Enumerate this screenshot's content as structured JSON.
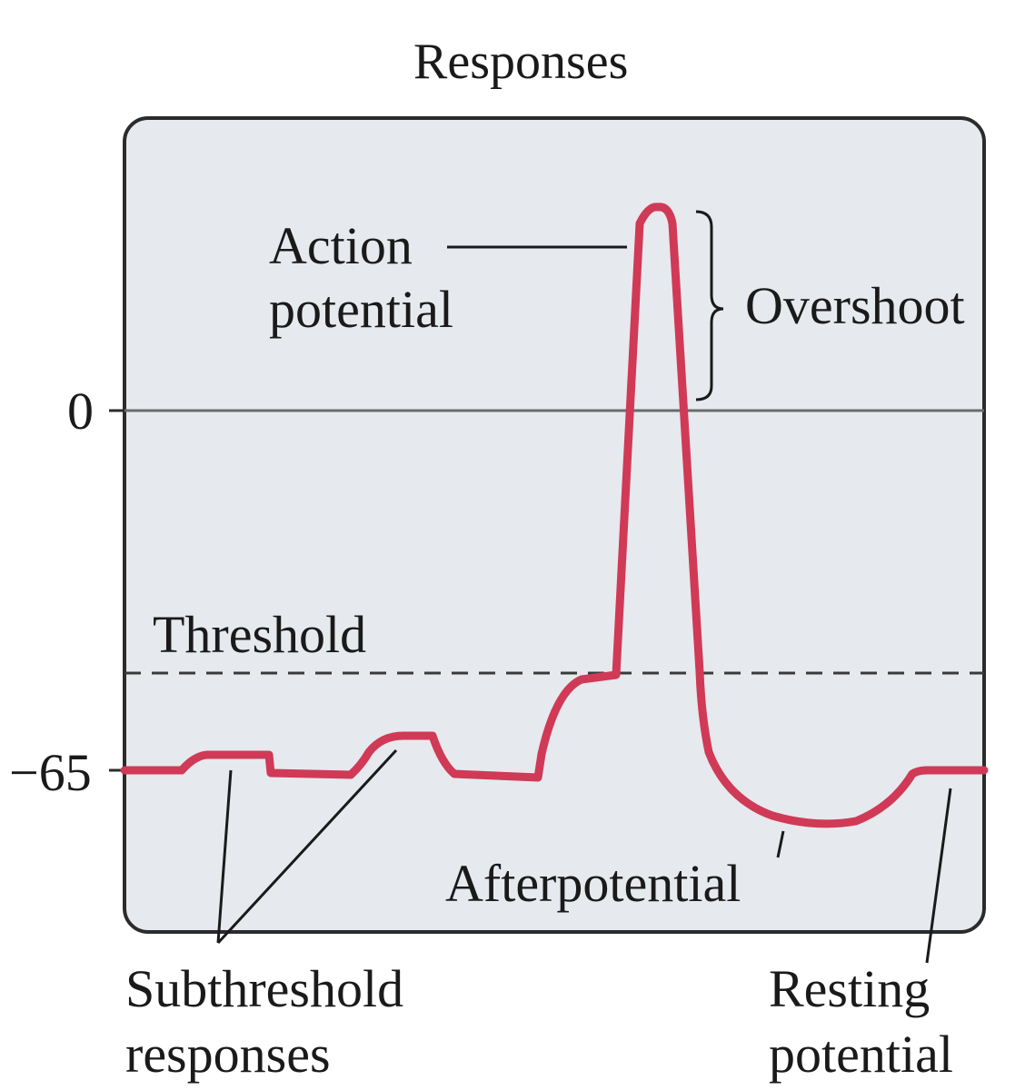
{
  "title": "Responses",
  "y_ticks": {
    "zero": "0",
    "rest": "−65"
  },
  "labels": {
    "action_line1": "Action",
    "action_line2": "potential",
    "overshoot": "Overshoot",
    "threshold": "Threshold",
    "afterpotential": "Afterpotential",
    "subthreshold_line1": "Subthreshold",
    "subthreshold_line2": "responses",
    "resting_line1": "Resting",
    "resting_line2": "potential"
  },
  "colors": {
    "trace": "#d03a56",
    "panel_fill": "#e6e9ee",
    "panel_border": "#2b2b2b",
    "text": "#1a1a1a"
  }
}
